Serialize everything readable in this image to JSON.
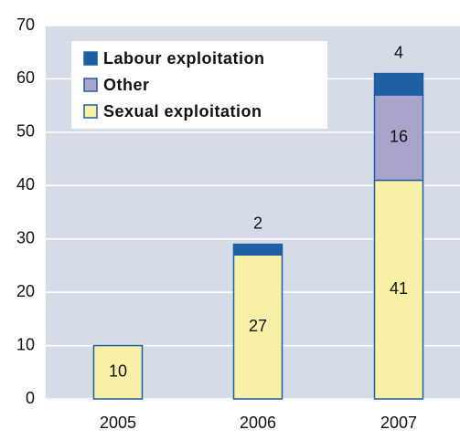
{
  "chart_data": {
    "type": "stacked_bar",
    "categories": [
      "2005",
      "2006",
      "2007"
    ],
    "series": [
      {
        "name": "Sexual exploitation",
        "color": "#f7f0a6",
        "values": [
          10,
          27,
          41
        ]
      },
      {
        "name": "Other",
        "color": "#a9a4cc",
        "values": [
          null,
          null,
          16
        ]
      },
      {
        "name": "Labour exploitation",
        "color": "#1f5fa3",
        "values": [
          null,
          2,
          4
        ]
      }
    ],
    "ylim": [
      0,
      70
    ],
    "yticks": [
      0,
      10,
      20,
      30,
      40,
      50,
      60,
      70
    ],
    "grid": true
  }
}
